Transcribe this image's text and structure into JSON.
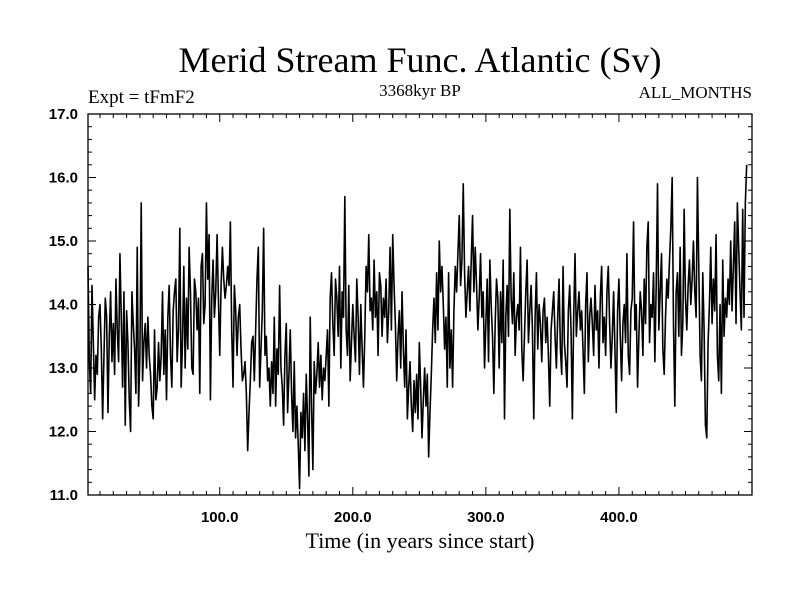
{
  "chart_data": {
    "type": "line",
    "title": "Merid Stream Func. Atlantic (Sv)",
    "subtitle_left": "Expt = tFmF2",
    "subtitle_center": "3368kyr BP",
    "subtitle_right": "ALL_MONTHS",
    "xlabel": "Time (in years since start)",
    "ylabel": "",
    "xlim": [
      1,
      500
    ],
    "ylim": [
      11.0,
      17.0
    ],
    "x_ticks": [
      "100.0",
      "200.0",
      "300.0",
      "400.0"
    ],
    "x_tick_values": [
      100,
      200,
      300,
      400
    ],
    "y_ticks": [
      "11.0",
      "12.0",
      "13.0",
      "14.0",
      "15.0",
      "16.0",
      "17.0"
    ],
    "y_tick_values": [
      11,
      12,
      13,
      14,
      15,
      16,
      17
    ],
    "grid": false,
    "line_color": "#000000",
    "series": [
      {
        "x_start": 1,
        "x_step": 1,
        "values": [
          14.6,
          13.1,
          12.6,
          14.3,
          13.4,
          12.5,
          13.2,
          12.9,
          13.8,
          14.0,
          13.3,
          12.2,
          13.2,
          14.1,
          13.8,
          12.3,
          13.5,
          14.2,
          13.1,
          13.7,
          12.9,
          14.4,
          13.6,
          13.1,
          14.8,
          13.8,
          12.7,
          14.2,
          12.1,
          13.9,
          13.4,
          12.5,
          12.0,
          14.2,
          13.7,
          13.3,
          12.6,
          14.9,
          12.4,
          13.2,
          15.6,
          12.8,
          13.4,
          13.7,
          13.0,
          13.8,
          13.2,
          12.9,
          12.4,
          12.2,
          13.6,
          12.5,
          12.7,
          13.4,
          12.8,
          13.2,
          14.2,
          12.9,
          13.6,
          12.5,
          13.8,
          14.3,
          13.2,
          12.7,
          13.9,
          14.2,
          14.4,
          13.1,
          13.6,
          15.2,
          12.7,
          13.4,
          14.6,
          13.0,
          14.1,
          13.3,
          14.9,
          14.2,
          13.0,
          12.9,
          14.4,
          14.2,
          13.6,
          14.1,
          12.6,
          14.6,
          14.8,
          13.7,
          14.0,
          15.6,
          14.4,
          15.1,
          12.5,
          14.1,
          14.7,
          13.8,
          14.2,
          15.1,
          14.1,
          13.2,
          14.3,
          14.9,
          14.4,
          14.1,
          14.3,
          14.6,
          14.3,
          15.3,
          13.6,
          12.7,
          14.3,
          13.9,
          13.2,
          13.8,
          14.0,
          13.3,
          12.8,
          12.9,
          13.1,
          12.6,
          11.7,
          12.3,
          12.8,
          13.4,
          13.5,
          12.8,
          13.6,
          14.4,
          14.9,
          12.7,
          13.3,
          13.9,
          15.2,
          13.2,
          13.5,
          12.8,
          13.0,
          12.4,
          13.1,
          12.6,
          13.8,
          12.4,
          13.3,
          12.9,
          14.3,
          13.0,
          12.7,
          12.1,
          13.2,
          13.7,
          12.3,
          12.9,
          13.6,
          12.6,
          12.0,
          13.1,
          11.9,
          12.4,
          11.8,
          11.1,
          12.3,
          11.9,
          12.6,
          11.7,
          12.9,
          12.2,
          11.3,
          13.8,
          12.4,
          11.4,
          13.1,
          12.6,
          12.9,
          13.4,
          12.7,
          13.2,
          12.5,
          13.0,
          12.8,
          13.2,
          13.6,
          12.4,
          14.1,
          14.5,
          13.7,
          13.2,
          14.4,
          14.1,
          13.5,
          14.6,
          13.0,
          14.2,
          13.8,
          15.7,
          13.6,
          13.2,
          14.3,
          12.8,
          13.4,
          14.0,
          13.5,
          13.1,
          14.4,
          13.8,
          12.9,
          14.0,
          13.3,
          12.7,
          13.5,
          14.6,
          14.2,
          15.1,
          13.9,
          14.1,
          13.6,
          14.7,
          13.8,
          14.2,
          13.2,
          14.5,
          14.3,
          13.5,
          14.1,
          13.8,
          14.4,
          13.4,
          13.9,
          14.9,
          13.6,
          15.1,
          14.3,
          13.7,
          12.8,
          13.5,
          13.9,
          13.0,
          14.2,
          13.3,
          12.7,
          13.6,
          12.2,
          12.7,
          13.1,
          12.4,
          12.0,
          12.8,
          12.3,
          12.9,
          12.2,
          13.4,
          12.7,
          11.9,
          12.5,
          13.0,
          12.4,
          12.9,
          11.6,
          12.3,
          12.9,
          13.6,
          14.1,
          13.4,
          14.5,
          13.6,
          15.0,
          14.2,
          14.6,
          14.0,
          13.3,
          13.8,
          12.7,
          14.5,
          13.0,
          13.6,
          12.7,
          13.9,
          14.6,
          14.2,
          14.8,
          15.4,
          14.3,
          14.7,
          15.9,
          14.5,
          13.8,
          14.2,
          14.6,
          13.9,
          14.7,
          15.4,
          14.2,
          14.9,
          14.3,
          13.6,
          14.1,
          14.8,
          13.8,
          14.2,
          13.0,
          13.7,
          14.4,
          13.1,
          14.7,
          14.0,
          13.5,
          12.6,
          13.7,
          14.4,
          14.1,
          13.0,
          14.2,
          13.4,
          14.7,
          12.2,
          13.8,
          14.3,
          13.5,
          15.5,
          14.1,
          13.7,
          14.5,
          13.2,
          13.8,
          14.0,
          13.6,
          14.9,
          13.3,
          12.8,
          13.5,
          14.2,
          14.7,
          13.4,
          13.9,
          14.3,
          13.6,
          12.2,
          13.8,
          14.5,
          13.3,
          14.0,
          13.7,
          13.1,
          13.9,
          14.1,
          13.4,
          13.8,
          13.2,
          12.4,
          13.6,
          13.9,
          14.2,
          13.5,
          13.0,
          13.8,
          14.4,
          13.3,
          12.9,
          14.6,
          13.4,
          13.1,
          12.7,
          13.9,
          14.3,
          13.6,
          12.2,
          13.8,
          14.8,
          13.5,
          13.9,
          14.2,
          13.6,
          13.9,
          13.3,
          12.6,
          14.0,
          14.5,
          13.1,
          13.8,
          14.1,
          13.7,
          13.2,
          14.3,
          13.6,
          13.9,
          13.0,
          14.1,
          14.6,
          13.4,
          13.8,
          13.2,
          14.2,
          14.6,
          13.7,
          13.0,
          13.5,
          14.2,
          13.3,
          12.3,
          13.9,
          14.4,
          13.5,
          12.8,
          13.7,
          14.0,
          13.4,
          14.8,
          13.2,
          12.9,
          13.9,
          14.1,
          15.3,
          13.6,
          14.0,
          12.7,
          13.5,
          14.2,
          13.9,
          13.2,
          14.4,
          13.7,
          14.9,
          15.3,
          13.4,
          14.0,
          13.8,
          14.5,
          13.1,
          14.3,
          15.9,
          13.6,
          14.2,
          14.8,
          13.3,
          12.9,
          13.8,
          14.4,
          14.1,
          14.7,
          15.2,
          16.0,
          13.7,
          12.4,
          14.2,
          14.5,
          13.5,
          14.9,
          13.2,
          13.7,
          15.5,
          14.1,
          13.6,
          14.3,
          14.7,
          14.0,
          14.4,
          15.0,
          14.2,
          13.8,
          16.0,
          14.6,
          13.2,
          12.8,
          14.5,
          13.6,
          12.1,
          11.9,
          13.4,
          14.0,
          14.9,
          13.7,
          14.4,
          13.9,
          15.1,
          13.2,
          12.8,
          14.0,
          12.6,
          14.7,
          13.5,
          14.1,
          13.8,
          14.4,
          14.0,
          15.0,
          13.9,
          14.6,
          15.3,
          13.7,
          15.6,
          14.9,
          14.2,
          13.6,
          15.5,
          13.8,
          15.6,
          16.2
        ]
      }
    ]
  }
}
